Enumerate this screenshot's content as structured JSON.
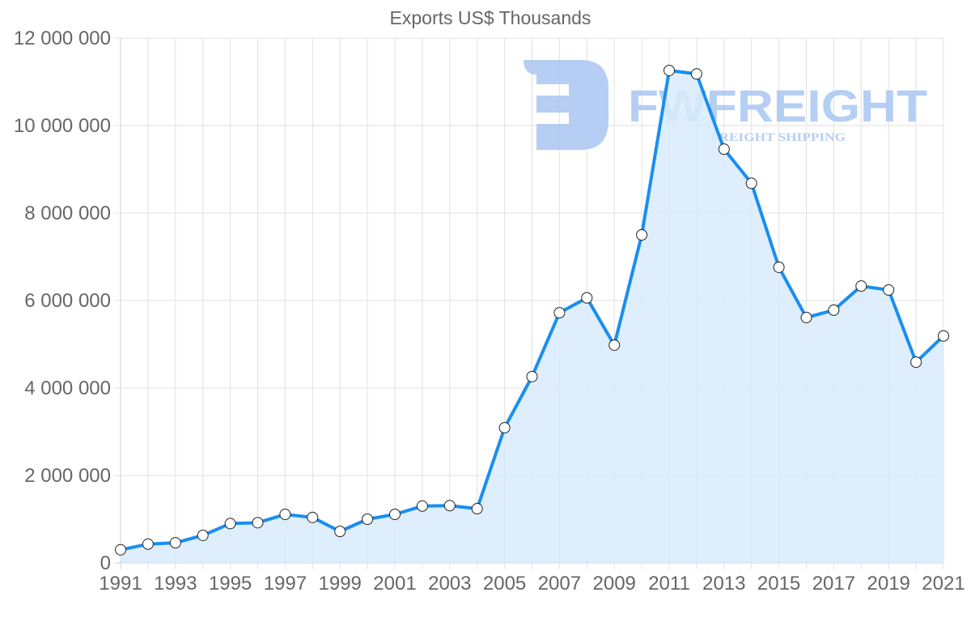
{
  "chart_data": {
    "type": "area",
    "title": "Exports US$ Thousands",
    "xlabel": "",
    "ylabel": "",
    "x": [
      1991,
      1992,
      1993,
      1994,
      1995,
      1996,
      1997,
      1998,
      1999,
      2000,
      2001,
      2002,
      2003,
      2004,
      2005,
      2006,
      2007,
      2008,
      2009,
      2010,
      2011,
      2012,
      2013,
      2014,
      2015,
      2016,
      2017,
      2018,
      2019,
      2020,
      2021
    ],
    "series": [
      {
        "name": "Exports US$ Thousands",
        "values": [
          300000,
          430000,
          460000,
          630000,
          900000,
          920000,
          1110000,
          1040000,
          720000,
          1000000,
          1110000,
          1300000,
          1310000,
          1240000,
          3090000,
          4260000,
          5720000,
          6060000,
          4980000,
          7500000,
          11260000,
          11180000,
          9460000,
          8680000,
          6760000,
          5610000,
          5780000,
          6330000,
          6240000,
          4590000,
          5190000
        ]
      }
    ],
    "ylim": [
      0,
      12000000
    ],
    "y_ticks": [
      "0",
      "2 000 000",
      "4 000 000",
      "6 000 000",
      "8 000 000",
      "10 000 000",
      "12 000 000"
    ],
    "x_ticks": [
      "1991",
      "1993",
      "1995",
      "1997",
      "1999",
      "2001",
      "2003",
      "2005",
      "2007",
      "2009",
      "2011",
      "2013",
      "2015",
      "2017",
      "2019",
      "2021"
    ],
    "grid": true,
    "legend": "none",
    "colors": {
      "line": "#1a8ef0",
      "fill": "#d8ebfc",
      "point_fill": "#ffffff",
      "point_stroke": "#222222"
    }
  },
  "watermark": {
    "brand": "FWFREIGHT",
    "tagline": "FREIGHT SHIPPING",
    "color": "#a9c6f2"
  }
}
